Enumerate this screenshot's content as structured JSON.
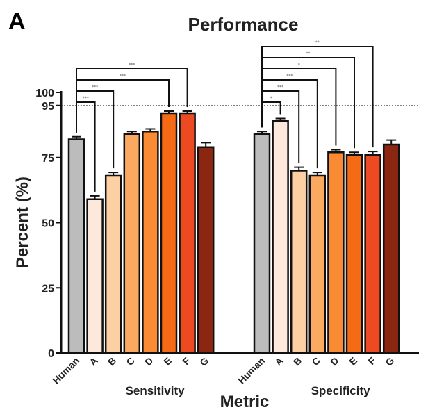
{
  "panel_label": "A",
  "chart_data": {
    "type": "bar",
    "title": "Performance",
    "xlabel": "Metric",
    "ylabel": "Percent (%)",
    "ylim": [
      0,
      100
    ],
    "yticks": [
      "0",
      "25",
      "50",
      "75",
      "95",
      "100"
    ],
    "reference_line": 95,
    "grid": false,
    "groups": [
      {
        "name": "Sensitivity",
        "categories": [
          "Human",
          "A",
          "B",
          "C",
          "D",
          "E",
          "F",
          "G"
        ],
        "values": [
          82,
          59,
          68,
          84,
          85,
          92,
          92,
          79
        ],
        "errors": [
          1.0,
          1.3,
          1.3,
          1.0,
          1.0,
          0.8,
          0.8,
          1.7
        ],
        "brackets": [
          {
            "from": "Human",
            "to": "A",
            "label": "***"
          },
          {
            "from": "Human",
            "to": "B",
            "label": "***"
          },
          {
            "from": "Human",
            "to": "E",
            "label": "***"
          },
          {
            "from": "Human",
            "to": "F",
            "label": "***"
          }
        ]
      },
      {
        "name": "Specificity",
        "categories": [
          "Human",
          "A",
          "B",
          "C",
          "D",
          "E",
          "F",
          "G"
        ],
        "values": [
          84,
          89,
          70,
          68,
          77,
          76,
          76,
          80
        ],
        "errors": [
          1.0,
          1.0,
          1.3,
          1.3,
          1.0,
          1.0,
          1.3,
          1.7
        ],
        "brackets": [
          {
            "from": "Human",
            "to": "A",
            "label": "*"
          },
          {
            "from": "Human",
            "to": "B",
            "label": "***"
          },
          {
            "from": "Human",
            "to": "C",
            "label": "***"
          },
          {
            "from": "Human",
            "to": "D",
            "label": "*"
          },
          {
            "from": "Human",
            "to": "E",
            "label": "**"
          },
          {
            "from": "Human",
            "to": "F",
            "label": "**"
          }
        ]
      }
    ],
    "colors": [
      "#bcbcbc",
      "#fde9dc",
      "#fdd0a4",
      "#fba860",
      "#f88b33",
      "#f46a15",
      "#ec4a20",
      "#8b2710"
    ]
  }
}
